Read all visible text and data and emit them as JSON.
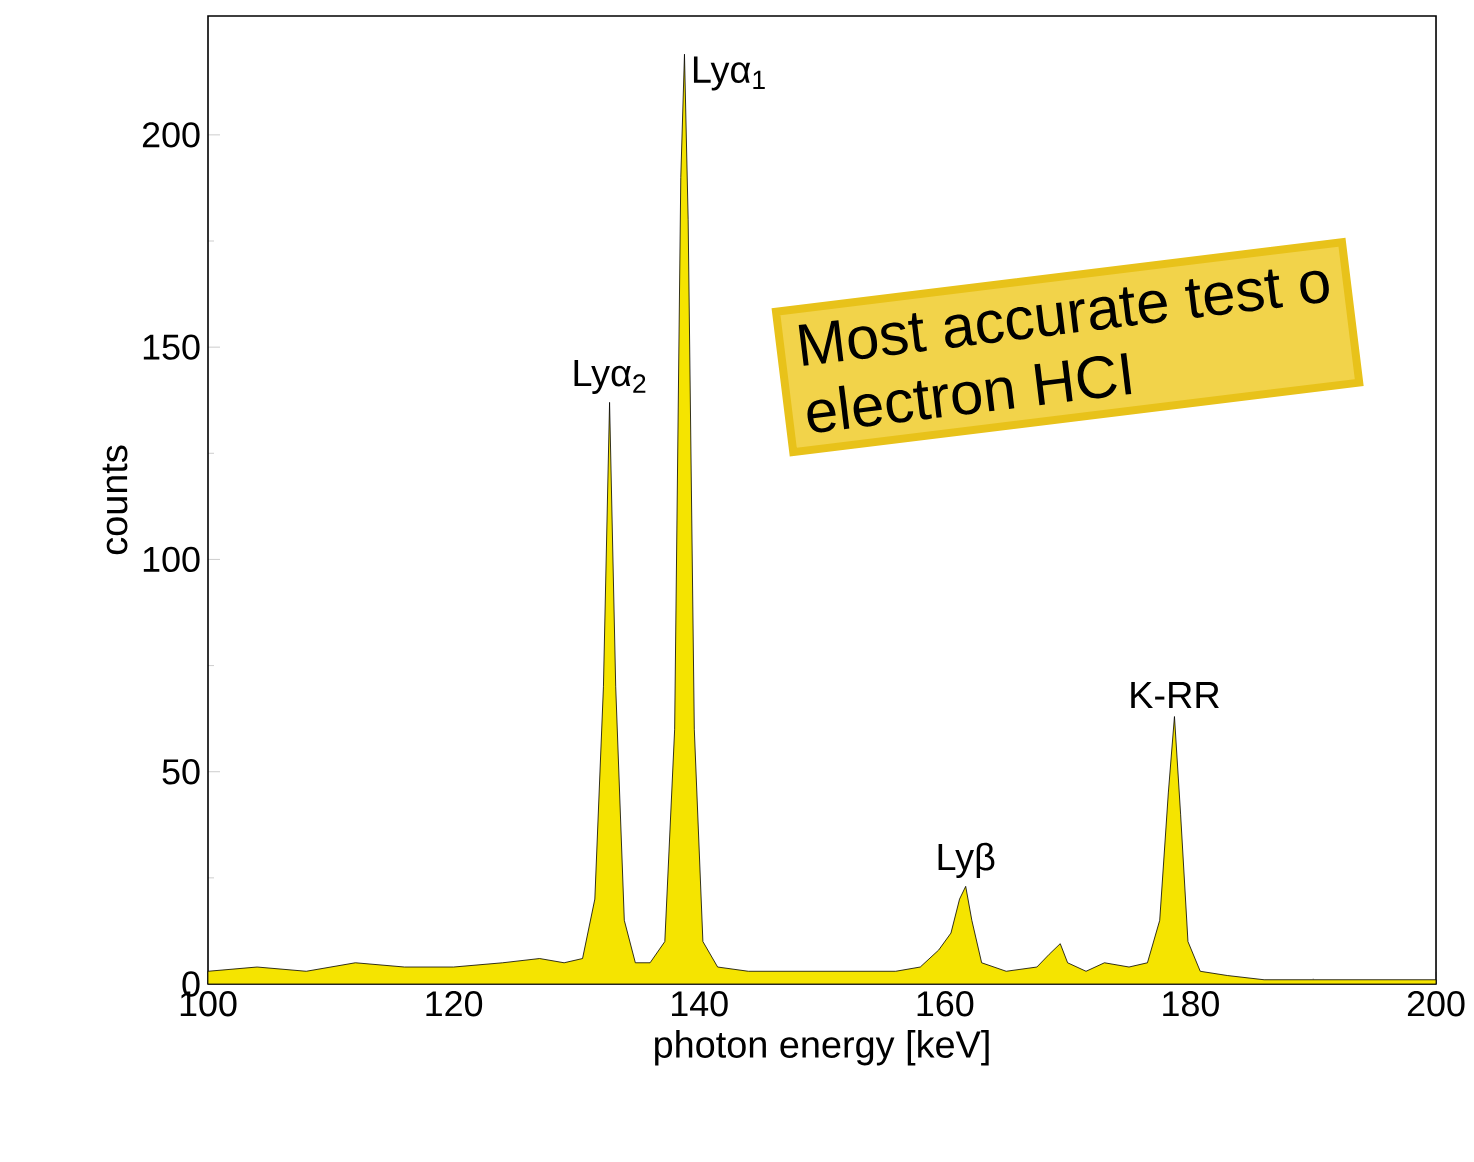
{
  "chart_data": {
    "type": "area",
    "xlabel": "photon energy [keV]",
    "ylabel": "counts",
    "x": [
      100,
      104,
      108,
      112,
      116,
      120,
      124,
      127,
      129,
      130.5,
      131.5,
      132.2,
      132.7,
      133.2,
      133.9,
      134.8,
      136,
      137.2,
      138,
      138.5,
      138.8,
      139.1,
      139.6,
      140.3,
      141.5,
      144,
      148,
      152,
      156,
      158,
      159.5,
      160.5,
      161.2,
      161.7,
      162.2,
      163,
      165,
      167.5,
      168.5,
      169.4,
      170,
      171.5,
      173,
      175,
      176.5,
      177.5,
      178.2,
      178.7,
      179.2,
      179.8,
      180.8,
      183,
      186,
      190,
      195,
      200
    ],
    "series": [
      {
        "color": "#f5e400",
        "values": [
          3,
          4,
          3,
          5,
          4,
          4,
          5,
          6,
          5,
          6,
          20,
          70,
          137,
          70,
          15,
          5,
          5,
          10,
          60,
          190,
          219,
          180,
          60,
          10,
          4,
          3,
          3,
          3,
          3,
          4,
          8,
          12,
          20,
          23,
          15,
          5,
          3,
          4,
          7,
          9.5,
          5,
          3,
          5,
          4,
          5,
          15,
          45,
          63,
          40,
          10,
          3,
          2,
          1,
          1,
          1,
          1
        ]
      }
    ],
    "xlim": [
      100,
      200
    ],
    "ylim": [
      0,
      228
    ],
    "xticks": [
      100,
      120,
      140,
      160,
      180,
      200
    ],
    "yticks": [
      0,
      50,
      100,
      150,
      200
    ],
    "annotations": [
      {
        "text": "Lyα$_{1}$",
        "x": 138.8,
        "y": 219
      },
      {
        "text": "Lyα$_{2}$",
        "x": 132.7,
        "y": 137
      },
      {
        "text": "Lyβ",
        "x": 161.7,
        "y": 23
      },
      {
        "text": "K-RR",
        "x": 178.7,
        "y": 63
      },
      "Most accurate test o",
      "electron HCI"
    ]
  }
}
